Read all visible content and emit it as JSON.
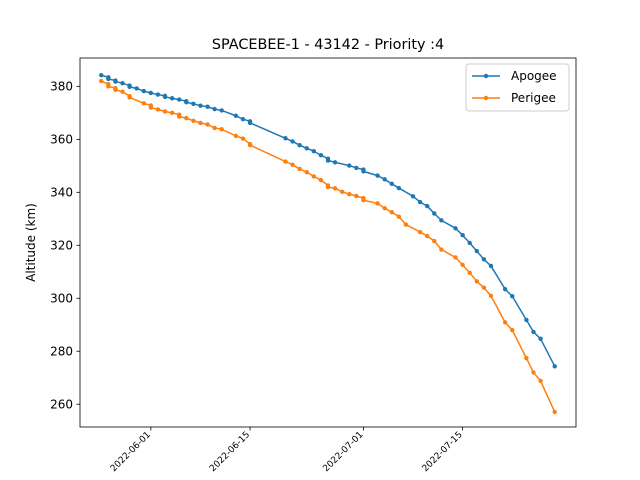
{
  "chart_data": {
    "type": "line",
    "title": "SPACEBEE-1 - 43142 - Priority :4",
    "xlabel": "",
    "ylabel": "Altitude (km)",
    "x_type": "date",
    "xlim": [
      "2022-05-22",
      "2022-07-31"
    ],
    "ylim": [
      251.4,
      390.7
    ],
    "xticks": [
      "2022-06-01",
      "2022-06-15",
      "2022-07-01",
      "2022-07-15"
    ],
    "yticks": [
      260,
      280,
      300,
      320,
      340,
      360,
      380
    ],
    "grid": false,
    "legend_position": "top-right",
    "colors": {
      "Apogee": "#1f77b4",
      "Perigee": "#ff7f0e"
    },
    "series": [
      {
        "name": "Apogee",
        "points": [
          [
            "2022-05-25",
            384.2
          ],
          [
            "2022-05-26",
            383.4
          ],
          [
            "2022-05-26",
            382.8
          ],
          [
            "2022-05-27",
            382.2
          ],
          [
            "2022-05-27",
            381.8
          ],
          [
            "2022-05-28",
            381.2
          ],
          [
            "2022-05-29",
            380.3
          ],
          [
            "2022-05-29",
            379.8
          ],
          [
            "2022-05-30",
            379.2
          ],
          [
            "2022-05-31",
            378.2
          ],
          [
            "2022-06-01",
            377.5
          ],
          [
            "2022-06-02",
            376.9
          ],
          [
            "2022-06-03",
            376.4
          ],
          [
            "2022-06-03",
            376.0
          ],
          [
            "2022-06-04",
            375.5
          ],
          [
            "2022-06-05",
            375.0
          ],
          [
            "2022-06-06",
            374.4
          ],
          [
            "2022-06-06",
            374.0
          ],
          [
            "2022-06-07",
            373.4
          ],
          [
            "2022-06-08",
            372.7
          ],
          [
            "2022-06-09",
            372.3
          ],
          [
            "2022-06-10",
            371.4
          ],
          [
            "2022-06-11",
            370.9
          ],
          [
            "2022-06-13",
            368.9
          ],
          [
            "2022-06-14",
            367.6
          ],
          [
            "2022-06-15",
            366.8
          ],
          [
            "2022-06-15",
            366.2
          ],
          [
            "2022-06-20",
            360.4
          ],
          [
            "2022-06-21",
            359.2
          ],
          [
            "2022-06-22",
            357.8
          ],
          [
            "2022-06-23",
            356.6
          ],
          [
            "2022-06-24",
            355.5
          ],
          [
            "2022-06-25",
            354.0
          ],
          [
            "2022-06-26",
            352.7
          ],
          [
            "2022-06-26",
            352.0
          ],
          [
            "2022-06-27",
            351.3
          ],
          [
            "2022-06-29",
            350.1
          ],
          [
            "2022-06-30",
            349.2
          ],
          [
            "2022-07-01",
            348.6
          ],
          [
            "2022-07-01",
            347.9
          ],
          [
            "2022-07-03",
            346.3
          ],
          [
            "2022-07-04",
            344.9
          ],
          [
            "2022-07-05",
            343.2
          ],
          [
            "2022-07-06",
            341.6
          ],
          [
            "2022-07-08",
            338.5
          ],
          [
            "2022-07-09",
            336.3
          ],
          [
            "2022-07-10",
            334.8
          ],
          [
            "2022-07-11",
            332.0
          ],
          [
            "2022-07-12",
            329.4
          ],
          [
            "2022-07-14",
            326.4
          ],
          [
            "2022-07-15",
            323.8
          ],
          [
            "2022-07-16",
            320.9
          ],
          [
            "2022-07-17",
            317.8
          ],
          [
            "2022-07-18",
            314.7
          ],
          [
            "2022-07-19",
            312.2
          ],
          [
            "2022-07-21",
            303.4
          ],
          [
            "2022-07-22",
            300.8
          ],
          [
            "2022-07-24",
            291.8
          ],
          [
            "2022-07-25",
            287.3
          ],
          [
            "2022-07-26",
            284.7
          ],
          [
            "2022-07-28",
            274.3
          ]
        ]
      },
      {
        "name": "Perigee",
        "points": [
          [
            "2022-05-25",
            382.0
          ],
          [
            "2022-05-26",
            380.8
          ],
          [
            "2022-05-26",
            380.0
          ],
          [
            "2022-05-27",
            379.3
          ],
          [
            "2022-05-27",
            378.7
          ],
          [
            "2022-05-28",
            378.0
          ],
          [
            "2022-05-29",
            376.3
          ],
          [
            "2022-05-29",
            375.8
          ],
          [
            "2022-05-31",
            373.6
          ],
          [
            "2022-06-01",
            372.8
          ],
          [
            "2022-06-01",
            372.0
          ],
          [
            "2022-06-02",
            371.3
          ],
          [
            "2022-06-03",
            370.5
          ],
          [
            "2022-06-04",
            370.0
          ],
          [
            "2022-06-05",
            369.3
          ],
          [
            "2022-06-05",
            368.6
          ],
          [
            "2022-06-06",
            368.0
          ],
          [
            "2022-06-07",
            367.0
          ],
          [
            "2022-06-08",
            366.2
          ],
          [
            "2022-06-09",
            365.6
          ],
          [
            "2022-06-10",
            364.3
          ],
          [
            "2022-06-11",
            363.8
          ],
          [
            "2022-06-13",
            361.3
          ],
          [
            "2022-06-14",
            360.3
          ],
          [
            "2022-06-15",
            358.2
          ],
          [
            "2022-06-15",
            357.8
          ],
          [
            "2022-06-20",
            351.6
          ],
          [
            "2022-06-21",
            350.4
          ],
          [
            "2022-06-22",
            348.8
          ],
          [
            "2022-06-23",
            347.6
          ],
          [
            "2022-06-24",
            346.0
          ],
          [
            "2022-06-25",
            344.6
          ],
          [
            "2022-06-26",
            342.6
          ],
          [
            "2022-06-26",
            342.0
          ],
          [
            "2022-06-27",
            341.5
          ],
          [
            "2022-06-28",
            340.2
          ],
          [
            "2022-06-29",
            339.3
          ],
          [
            "2022-06-30",
            338.6
          ],
          [
            "2022-07-01",
            337.8
          ],
          [
            "2022-07-01",
            337.0
          ],
          [
            "2022-07-03",
            335.8
          ],
          [
            "2022-07-04",
            334.0
          ],
          [
            "2022-07-05",
            332.5
          ],
          [
            "2022-07-06",
            330.8
          ],
          [
            "2022-07-07",
            327.8
          ],
          [
            "2022-07-09",
            325.0
          ],
          [
            "2022-07-10",
            323.5
          ],
          [
            "2022-07-11",
            321.6
          ],
          [
            "2022-07-12",
            318.4
          ],
          [
            "2022-07-14",
            315.4
          ],
          [
            "2022-07-15",
            312.6
          ],
          [
            "2022-07-16",
            309.6
          ],
          [
            "2022-07-17",
            306.4
          ],
          [
            "2022-07-18",
            304.0
          ],
          [
            "2022-07-19",
            300.9
          ],
          [
            "2022-07-21",
            290.9
          ],
          [
            "2022-07-22",
            288.0
          ],
          [
            "2022-07-24",
            277.4
          ],
          [
            "2022-07-25",
            272.0
          ],
          [
            "2022-07-26",
            268.8
          ],
          [
            "2022-07-28",
            257.1
          ]
        ]
      }
    ]
  }
}
